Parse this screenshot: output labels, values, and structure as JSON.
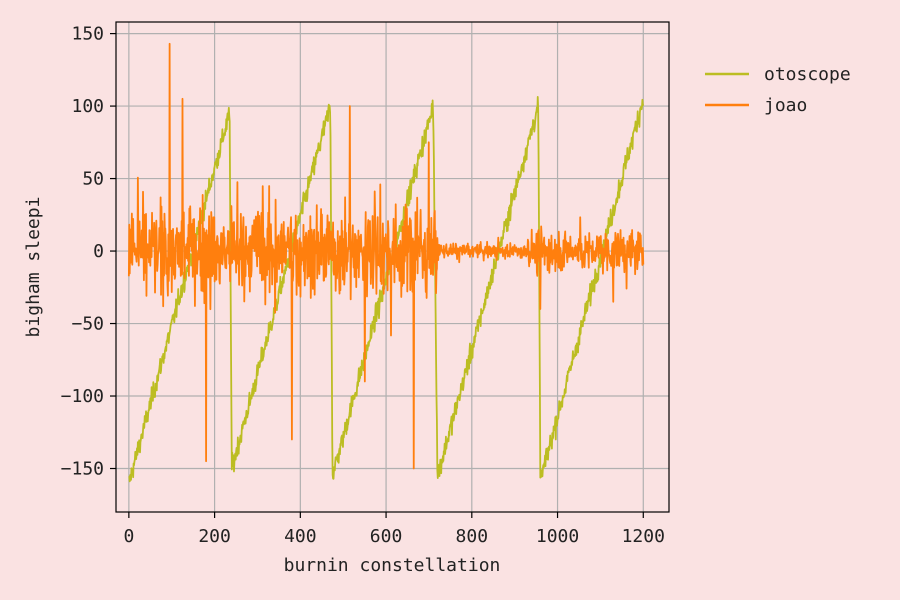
{
  "colors": {
    "background": "#fae2e2",
    "plot_background": "#fae2e2",
    "grid": "#b0b0b0",
    "axis": "#000000"
  },
  "chart_data": {
    "type": "line",
    "title": "",
    "xlabel": "burnin constellation",
    "ylabel": "bigham sleepi",
    "xlim": [
      -30,
      1260
    ],
    "ylim": [
      -180,
      158
    ],
    "xticks": [
      0,
      200,
      400,
      600,
      800,
      1000,
      1200
    ],
    "yticks": [
      -150,
      -100,
      -50,
      0,
      50,
      100,
      150
    ],
    "xtick_labels": [
      "0",
      "200",
      "400",
      "600",
      "800",
      "1000",
      "1200"
    ],
    "ytick_labels": [
      "−150",
      "−100",
      "−50",
      "0",
      "50",
      "100",
      "150"
    ],
    "grid": true,
    "legend_position": "outside-top-right",
    "series": [
      {
        "name": "otoscope",
        "color": "#bcbd22",
        "shape": "sawtooth",
        "n_points": 1200,
        "keypoints": [
          [
            0,
            -160
          ],
          [
            235,
            95
          ],
          [
            240,
            -150
          ],
          [
            470,
            100
          ],
          [
            475,
            -155
          ],
          [
            710,
            100
          ],
          [
            720,
            -155
          ],
          [
            955,
            100
          ],
          [
            960,
            -158
          ],
          [
            1200,
            105
          ]
        ],
        "noise_amplitude": 10
      },
      {
        "name": "joao",
        "color": "#ff7f0e",
        "shape": "noise",
        "n_points": 1200,
        "center": 0,
        "segments": [
          {
            "x_start": 0,
            "x_end": 720,
            "spread": 25
          },
          {
            "x_start": 720,
            "x_end": 930,
            "spread": 4
          },
          {
            "x_start": 930,
            "x_end": 1200,
            "spread": 12
          }
        ],
        "peaks": [
          [
            95,
            143
          ],
          [
            180,
            -145
          ],
          [
            125,
            105
          ],
          [
            380,
            -130
          ],
          [
            515,
            100
          ],
          [
            665,
            -150
          ],
          [
            550,
            -90
          ],
          [
            960,
            -40
          ],
          [
            1130,
            -35
          ],
          [
            700,
            75
          ]
        ]
      }
    ]
  }
}
